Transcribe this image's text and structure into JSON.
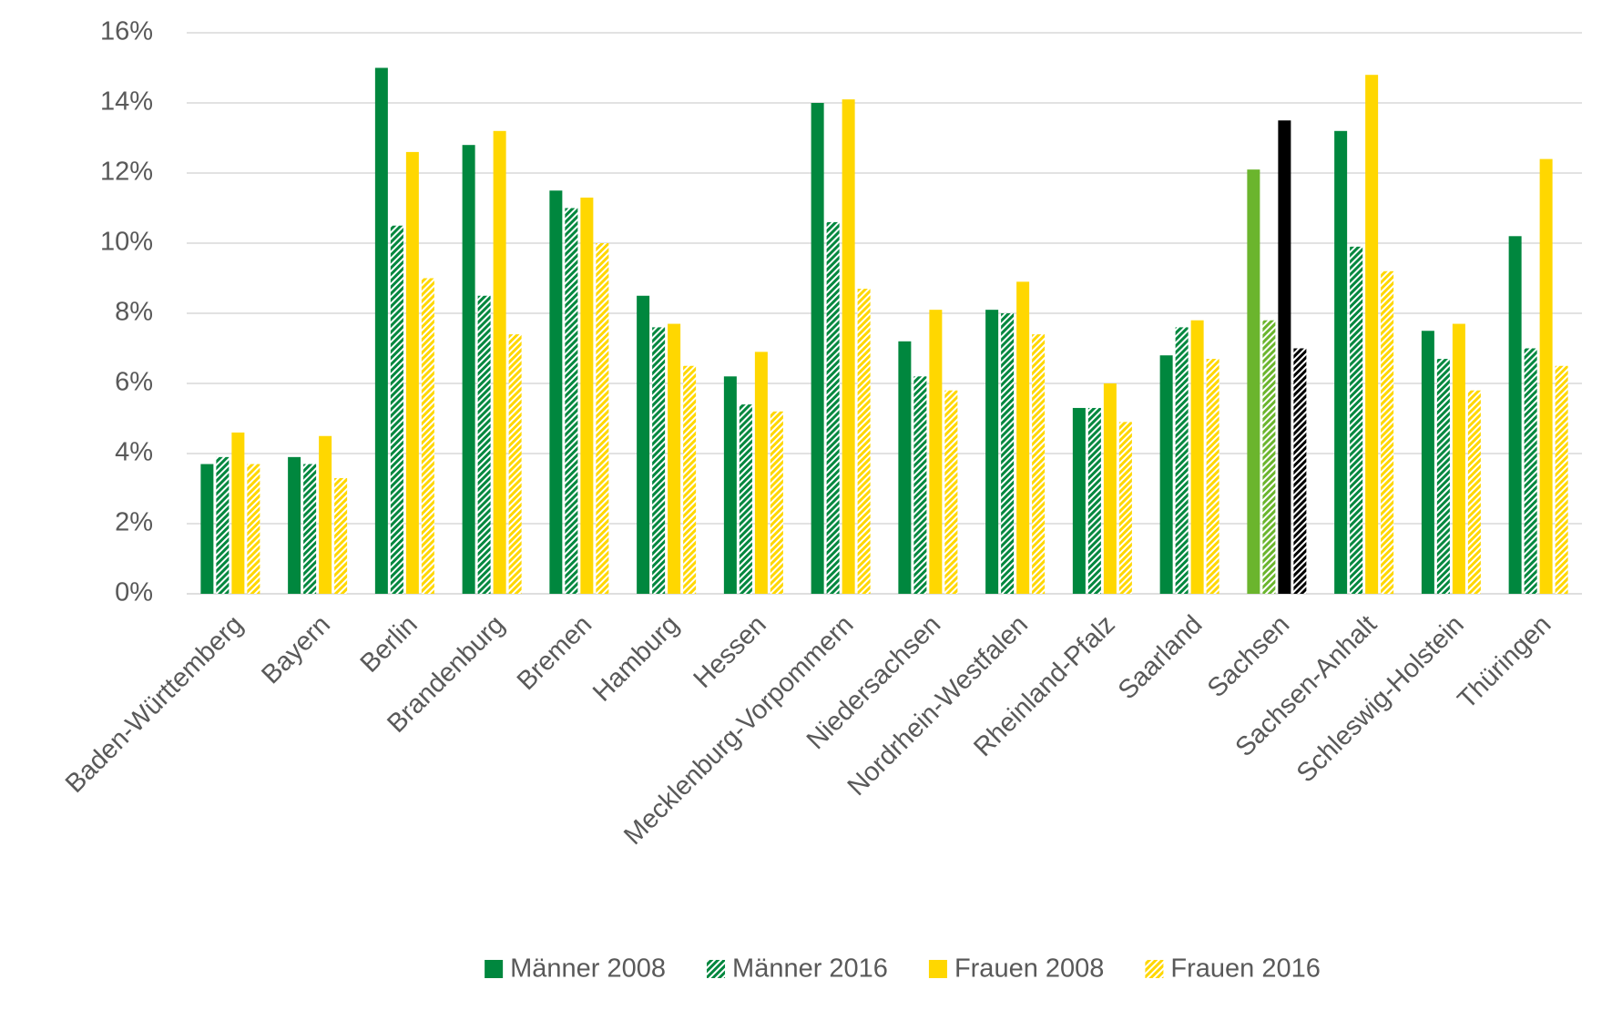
{
  "chart_data": {
    "type": "bar",
    "categories": [
      "Baden-Württemberg",
      "Bayern",
      "Berlin",
      "Brandenburg",
      "Bremen",
      "Hamburg",
      "Hessen",
      "Mecklenburg-Vorpommern",
      "Niedersachsen",
      "Nordrhein-Westfalen",
      "Rheinland-Pfalz",
      "Saarland",
      "Sachsen",
      "Sachsen-Anhalt",
      "Schleswig-Holstein",
      "Thüringen"
    ],
    "series": [
      {
        "name": "Männer 2008",
        "color": "#00873e",
        "hatched": false,
        "point_colors": {
          "12": "#6bb52d"
        },
        "values": [
          3.7,
          3.9,
          15.0,
          12.8,
          11.5,
          8.5,
          6.2,
          14.0,
          7.2,
          8.1,
          5.3,
          6.8,
          12.1,
          13.2,
          7.5,
          10.2
        ]
      },
      {
        "name": "Männer 2016",
        "color": "#00873e",
        "hatched": true,
        "point_colors": {
          "12": "#6bb52d"
        },
        "values": [
          3.9,
          3.7,
          10.5,
          8.5,
          11.0,
          7.6,
          5.4,
          10.6,
          6.2,
          8.0,
          5.3,
          7.6,
          7.8,
          9.9,
          6.7,
          7.0
        ]
      },
      {
        "name": "Frauen 2008",
        "color": "#ffd700",
        "hatched": false,
        "point_colors": {
          "12": "#000000"
        },
        "values": [
          4.6,
          4.5,
          12.6,
          13.2,
          11.3,
          7.7,
          6.9,
          14.1,
          8.1,
          8.9,
          6.0,
          7.8,
          13.5,
          14.8,
          7.7,
          12.4
        ]
      },
      {
        "name": "Frauen 2016",
        "color": "#ffd700",
        "hatched": true,
        "point_colors": {
          "12": "#000000"
        },
        "values": [
          3.7,
          3.3,
          9.0,
          7.4,
          10.0,
          6.5,
          5.2,
          8.7,
          5.8,
          7.4,
          4.9,
          6.7,
          7.0,
          9.2,
          5.8,
          6.5
        ]
      }
    ],
    "ylim": [
      0,
      16
    ],
    "yticks": [
      {
        "value": 0,
        "label": "0%"
      },
      {
        "value": 2,
        "label": "2%"
      },
      {
        "value": 4,
        "label": "4%"
      },
      {
        "value": 6,
        "label": "6%"
      },
      {
        "value": 8,
        "label": "8%"
      },
      {
        "value": 10,
        "label": "10%"
      },
      {
        "value": 12,
        "label": "12%"
      },
      {
        "value": 14,
        "label": "14%"
      },
      {
        "value": 16,
        "label": "16%"
      }
    ],
    "grid": true,
    "legend": "bottom"
  }
}
